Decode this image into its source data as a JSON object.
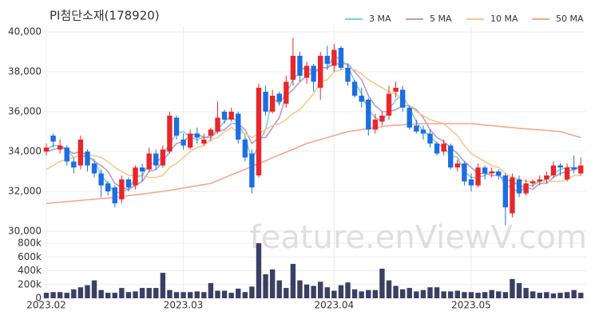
{
  "chart_data": {
    "type": "candlestick",
    "title": "PI첨단소재(178920)",
    "watermark": "feature.enViewV.com",
    "up_color": "#e8272c",
    "down_color": "#1e6ee0",
    "grid": true,
    "legend": "top-right",
    "categories": [
      "2023.02",
      null,
      null,
      null,
      null,
      null,
      null,
      null,
      null,
      null,
      null,
      null,
      null,
      null,
      null,
      null,
      null,
      null,
      null,
      null,
      "2023.03",
      null,
      null,
      null,
      null,
      null,
      null,
      null,
      null,
      null,
      null,
      null,
      null,
      null,
      null,
      null,
      null,
      null,
      null,
      null,
      null,
      null,
      "2023.04",
      null,
      null,
      null,
      null,
      null,
      null,
      null,
      null,
      null,
      null,
      null,
      null,
      null,
      null,
      null,
      null,
      null,
      null,
      null,
      "2023.05",
      null,
      null,
      null,
      null,
      null,
      null,
      null,
      null,
      null,
      null,
      null,
      null,
      null,
      null,
      null,
      null
    ],
    "open": [
      34000,
      34800,
      34100,
      34200,
      33500,
      33300,
      34000,
      33400,
      32900,
      32400,
      32200,
      31600,
      32600,
      32300,
      33200,
      33100,
      33900,
      33300,
      34000,
      35700,
      34600,
      34200,
      34900,
      34400,
      34800,
      35000,
      36000,
      35600,
      35900,
      34600,
      33900,
      32800,
      37000,
      36000,
      36900,
      36400,
      37600,
      38800,
      37700,
      38300,
      37200,
      38800,
      38300,
      39200,
      38200,
      37500,
      36800,
      36600,
      35100,
      35500,
      35800,
      37000,
      37100,
      36200,
      35300,
      35100,
      34900,
      34400,
      34000,
      34300,
      33200,
      33400,
      32600,
      32300,
      33200,
      32900,
      33000,
      32800,
      30900,
      32600,
      31900,
      32400,
      32500,
      32600,
      32800,
      33300,
      32600,
      33200,
      32900
    ],
    "high": [
      34400,
      34900,
      34600,
      34300,
      33700,
      34800,
      34100,
      33500,
      33100,
      32500,
      32300,
      32800,
      32700,
      33300,
      33400,
      34200,
      34100,
      34300,
      36000,
      35800,
      34900,
      35100,
      35200,
      34900,
      35200,
      36500,
      36100,
      36200,
      36000,
      34700,
      34100,
      37400,
      37300,
      37100,
      37000,
      37800,
      39700,
      39000,
      38500,
      38400,
      39000,
      39300,
      39400,
      39300,
      38400,
      37600,
      37200,
      36700,
      35900,
      36000,
      37300,
      37500,
      37300,
      36300,
      35600,
      35300,
      35100,
      34500,
      34600,
      34400,
      33600,
      33500,
      32900,
      33400,
      33300,
      33200,
      33100,
      32900,
      32900,
      32800,
      32600,
      32600,
      32800,
      33000,
      33500,
      33400,
      33400,
      33800,
      33700
    ],
    "low": [
      33800,
      34200,
      33900,
      33300,
      32900,
      33100,
      33000,
      32700,
      31700,
      31800,
      31200,
      31400,
      32000,
      32100,
      32500,
      33000,
      33100,
      33200,
      33900,
      34600,
      34100,
      34100,
      34400,
      34300,
      34500,
      34900,
      35400,
      35500,
      34400,
      33500,
      31900,
      32700,
      35800,
      35900,
      36300,
      36200,
      37300,
      37500,
      37400,
      37000,
      36600,
      38100,
      38000,
      38100,
      37300,
      36700,
      36200,
      34800,
      34900,
      35300,
      35600,
      36700,
      36000,
      35100,
      34900,
      34600,
      34200,
      33800,
      33800,
      33100,
      33000,
      32300,
      32000,
      32200,
      32600,
      32700,
      32600,
      30300,
      30700,
      31700,
      31800,
      32200,
      32300,
      32400,
      32700,
      32800,
      32500,
      32900,
      32800
    ],
    "close": [
      34200,
      34500,
      34300,
      33500,
      33200,
      34600,
      33300,
      32900,
      32300,
      32000,
      31400,
      32600,
      32200,
      33200,
      33000,
      33900,
      33300,
      34100,
      35800,
      34800,
      34300,
      34900,
      34700,
      34600,
      35100,
      35700,
      35600,
      36000,
      34600,
      33700,
      32200,
      37200,
      36000,
      36800,
      36500,
      37500,
      38800,
      37800,
      38300,
      37500,
      38800,
      38400,
      39100,
      38200,
      37500,
      36800,
      36500,
      35100,
      35600,
      35800,
      36900,
      37200,
      36200,
      35200,
      35000,
      34900,
      34400,
      33900,
      34400,
      33200,
      33400,
      32500,
      32300,
      33200,
      32900,
      33000,
      32800,
      31200,
      32700,
      31900,
      32400,
      32500,
      32600,
      32800,
      33300,
      33200,
      33200,
      33100,
      33300
    ],
    "ylim": [
      30000,
      40000
    ],
    "yticks": [
      {
        "value": 30000,
        "label": "30,000"
      },
      {
        "value": 32000,
        "label": "32,000"
      },
      {
        "value": 34000,
        "label": "34,000"
      },
      {
        "value": 36000,
        "label": "36,000"
      },
      {
        "value": 38000,
        "label": "38,000"
      },
      {
        "value": 40000,
        "label": "40,000"
      }
    ],
    "series": [
      {
        "name": "3 MA",
        "color": "#7ecfd0",
        "values": [
          34100,
          34300,
          34300,
          34100,
          33700,
          33800,
          33700,
          33600,
          32800,
          32400,
          31900,
          32000,
          32100,
          32700,
          32800,
          33400,
          33400,
          33800,
          34400,
          34900,
          35000,
          34700,
          34600,
          34700,
          34800,
          35100,
          35500,
          35800,
          35400,
          34800,
          33500,
          34400,
          35100,
          36700,
          36400,
          36900,
          37600,
          38000,
          38300,
          37900,
          38200,
          38200,
          38800,
          38600,
          38300,
          37500,
          36900,
          36100,
          35700,
          35500,
          36100,
          36600,
          36800,
          36200,
          35500,
          35000,
          34800,
          34400,
          34200,
          33800,
          33700,
          33000,
          32700,
          32700,
          32800,
          33000,
          32900,
          32300,
          32200,
          31900,
          32300,
          32300,
          32500,
          32600,
          32900,
          33100,
          33200,
          33200,
          33200
        ]
      },
      {
        "name": "5 MA",
        "color": "#b59dcb",
        "values": [
          34000,
          34100,
          34200,
          34100,
          33900,
          34000,
          33800,
          33500,
          33300,
          33000,
          32400,
          32200,
          32100,
          32300,
          32500,
          33000,
          33100,
          33500,
          34000,
          34400,
          34500,
          34800,
          34900,
          34700,
          34700,
          35000,
          35100,
          35400,
          35400,
          35100,
          34400,
          34700,
          34700,
          35200,
          35700,
          36800,
          37100,
          37500,
          37800,
          38000,
          38200,
          38200,
          38400,
          38400,
          38400,
          38000,
          37600,
          36800,
          36300,
          36000,
          36000,
          36100,
          36300,
          36300,
          36100,
          35700,
          35100,
          34700,
          34500,
          34200,
          33900,
          33500,
          33200,
          32900,
          32900,
          32800,
          32800,
          32600,
          32500,
          32300,
          32200,
          32100,
          32400,
          32400,
          32700,
          32900,
          33000,
          33100,
          33200
        ]
      },
      {
        "name": "10 MA",
        "color": "#f3c98f",
        "values": [
          33100,
          33300,
          33500,
          33600,
          33700,
          33800,
          33800,
          33800,
          33700,
          33500,
          33200,
          33000,
          32800,
          32800,
          32800,
          32700,
          32700,
          32800,
          33200,
          33400,
          33700,
          34000,
          34200,
          34300,
          34600,
          34700,
          35000,
          35200,
          35000,
          34900,
          34700,
          34900,
          35100,
          35300,
          35400,
          35600,
          35900,
          36100,
          36500,
          36900,
          37500,
          37600,
          38000,
          38100,
          38200,
          38100,
          37900,
          37600,
          37400,
          37200,
          37000,
          36900,
          36600,
          36300,
          36000,
          35800,
          35600,
          35500,
          35400,
          35100,
          34800,
          34300,
          33900,
          33700,
          33500,
          33300,
          33200,
          32900,
          32700,
          32600,
          32500,
          32500,
          32500,
          32500,
          32500,
          32500,
          32600,
          32800,
          32800
        ]
      },
      {
        "name": "50 MA",
        "color": "#f4a58f",
        "values": [
          31400,
          31430,
          31460,
          31490,
          31520,
          31550,
          31580,
          31610,
          31640,
          31670,
          31700,
          31740,
          31790,
          31830,
          31870,
          31910,
          31960,
          32000,
          32060,
          32110,
          32170,
          32230,
          32290,
          32340,
          32400,
          32540,
          32690,
          32830,
          32970,
          33110,
          33260,
          33400,
          33540,
          33690,
          33830,
          33970,
          34110,
          34260,
          34400,
          34500,
          34600,
          34700,
          34800,
          34900,
          35000,
          35050,
          35100,
          35150,
          35200,
          35250,
          35300,
          35320,
          35340,
          35360,
          35380,
          35400,
          35400,
          35400,
          35400,
          35400,
          35400,
          35400,
          35400,
          35370,
          35330,
          35300,
          35270,
          35230,
          35200,
          35170,
          35140,
          35110,
          35090,
          35060,
          35030,
          35000,
          34900,
          34800,
          34700
        ]
      }
    ],
    "volume": {
      "color": "#3b3f63",
      "ylim": [
        0,
        800000
      ],
      "yticks": [
        0,
        {
          "value": 200000,
          "label": "200k"
        },
        {
          "value": 400000,
          "label": "400k"
        },
        {
          "value": 600000,
          "label": "600k"
        },
        {
          "value": 800000,
          "label": "800k"
        }
      ],
      "values": [
        80000,
        90000,
        90000,
        80000,
        130000,
        160000,
        190000,
        260000,
        120000,
        80000,
        80000,
        150000,
        90000,
        100000,
        150000,
        150000,
        150000,
        370000,
        120000,
        90000,
        90000,
        90000,
        100000,
        90000,
        220000,
        110000,
        110000,
        80000,
        140000,
        90000,
        170000,
        800000,
        350000,
        420000,
        260000,
        150000,
        500000,
        260000,
        200000,
        180000,
        240000,
        160000,
        110000,
        190000,
        230000,
        130000,
        100000,
        120000,
        120000,
        430000,
        260000,
        180000,
        130000,
        150000,
        100000,
        120000,
        160000,
        160000,
        100000,
        100000,
        110000,
        90000,
        90000,
        80000,
        90000,
        120000,
        100000,
        90000,
        280000,
        220000,
        150000,
        100000,
        80000,
        90000,
        70000,
        80000,
        90000,
        120000,
        80000
      ]
    }
  }
}
